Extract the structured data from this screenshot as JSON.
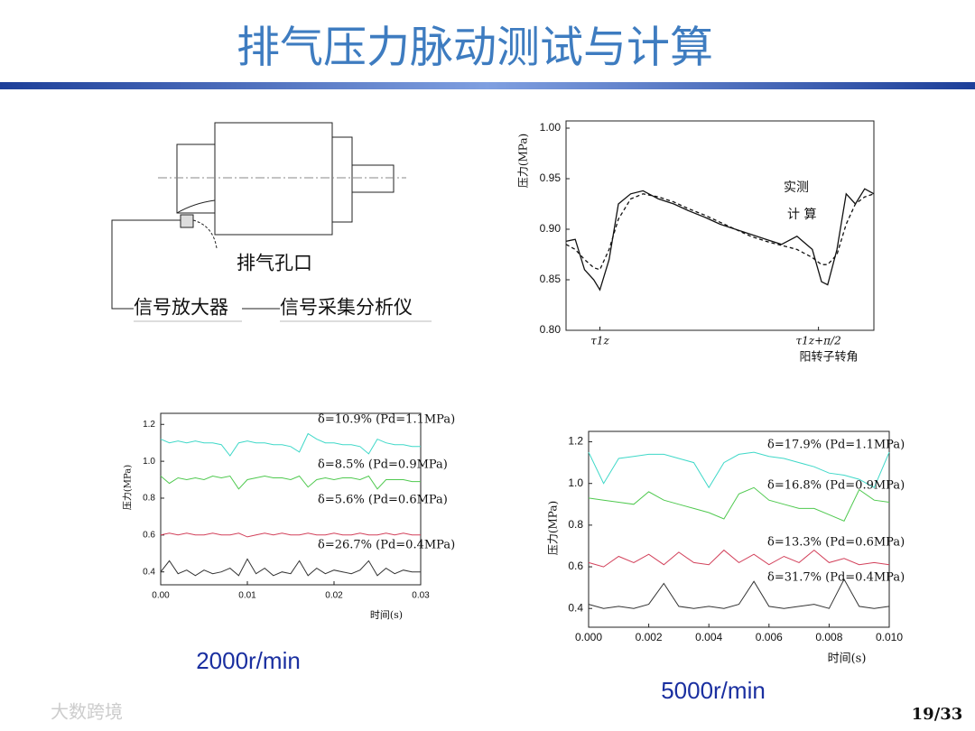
{
  "title": "排气压力脉动测试与计算",
  "diagram": {
    "labels": [
      "排气孔口",
      "信号放大器",
      "信号采集分析仪"
    ]
  },
  "chart_data": [
    {
      "type": "line",
      "ylabel": "压力(MPa)",
      "xlabel": "阳转子转角",
      "xlim": [
        0,
        100
      ],
      "ylim": [
        0.8,
        1.0
      ],
      "xticks": [
        {
          "value": 11,
          "label": "τ1z"
        },
        {
          "value": 82,
          "label": "τ1z+π/2"
        }
      ],
      "yticks": [
        {
          "value": 0.8,
          "label": "0.80"
        },
        0.85,
        {
          "value": 0.9,
          "label": "0.90"
        },
        0.95,
        {
          "value": 1,
          "label": "1.00"
        }
      ],
      "x": [
        0,
        3,
        6,
        9,
        11,
        14,
        17,
        21,
        25,
        30,
        35,
        40,
        45,
        50,
        55,
        60,
        65,
        70,
        75,
        80,
        83,
        85,
        88,
        91,
        94,
        97,
        100
      ],
      "series": [
        {
          "name": "实测",
          "color": "#111111",
          "style": "solid",
          "values": [
            0.888,
            0.89,
            0.86,
            0.85,
            0.84,
            0.87,
            0.925,
            0.935,
            0.938,
            0.93,
            0.925,
            0.918,
            0.912,
            0.905,
            0.9,
            0.895,
            0.89,
            0.885,
            0.893,
            0.88,
            0.848,
            0.845,
            0.88,
            0.935,
            0.925,
            0.94,
            0.935
          ]
        },
        {
          "name": "计 算",
          "color": "#111111",
          "style": "dashed",
          "values": [
            0.885,
            0.88,
            0.87,
            0.862,
            0.86,
            0.88,
            0.91,
            0.93,
            0.935,
            0.932,
            0.927,
            0.92,
            0.914,
            0.907,
            0.9,
            0.893,
            0.888,
            0.884,
            0.88,
            0.872,
            0.865,
            0.865,
            0.875,
            0.905,
            0.925,
            0.932,
            0.935
          ]
        }
      ]
    },
    {
      "type": "line",
      "ylabel": "压力(MPa)",
      "xlabel": "时间(s)",
      "caption": "2000r/min",
      "xlim": [
        0,
        0.03
      ],
      "ylim": [
        0.33,
        1.26
      ],
      "xticks": [
        {
          "value": 0,
          "label": "0.00"
        },
        0.01,
        0.02,
        0.03
      ],
      "yticks": [
        0.4,
        0.6,
        0.8,
        {
          "value": 1,
          "label": "1.0"
        },
        1.2
      ],
      "x": [
        0,
        0.001,
        0.002,
        0.003,
        0.004,
        0.005,
        0.006,
        0.007,
        0.008,
        0.009,
        0.01,
        0.011,
        0.012,
        0.013,
        0.014,
        0.015,
        0.016,
        0.017,
        0.018,
        0.019,
        0.02,
        0.021,
        0.022,
        0.023,
        0.024,
        0.025,
        0.026,
        0.027,
        0.028,
        0.029,
        0.03
      ],
      "series": [
        {
          "name": "δ=10.9%  (Pd=1.1MPa)",
          "color": "#3fd8c8",
          "style": "solid",
          "values": [
            1.12,
            1.1,
            1.11,
            1.1,
            1.11,
            1.1,
            1.1,
            1.09,
            1.03,
            1.1,
            1.11,
            1.1,
            1.1,
            1.09,
            1.09,
            1.08,
            1.05,
            1.15,
            1.12,
            1.1,
            1.1,
            1.09,
            1.09,
            1.08,
            1.04,
            1.12,
            1.1,
            1.09,
            1.09,
            1.08,
            1.08
          ]
        },
        {
          "name": "δ=8.5%   (Pd=0.9MPa)",
          "color": "#4fc94f",
          "style": "solid",
          "values": [
            0.92,
            0.88,
            0.91,
            0.9,
            0.91,
            0.9,
            0.92,
            0.91,
            0.92,
            0.85,
            0.9,
            0.91,
            0.92,
            0.91,
            0.91,
            0.9,
            0.92,
            0.86,
            0.9,
            0.91,
            0.9,
            0.91,
            0.91,
            0.9,
            0.92,
            0.85,
            0.9,
            0.9,
            0.9,
            0.89,
            0.89
          ]
        },
        {
          "name": "δ=5.6%   (Pd=0.6MPa)",
          "color": "#d2405a",
          "style": "solid",
          "values": [
            0.6,
            0.61,
            0.6,
            0.61,
            0.6,
            0.6,
            0.61,
            0.6,
            0.6,
            0.61,
            0.59,
            0.6,
            0.61,
            0.6,
            0.61,
            0.6,
            0.6,
            0.61,
            0.6,
            0.6,
            0.61,
            0.6,
            0.6,
            0.61,
            0.6,
            0.6,
            0.61,
            0.6,
            0.61,
            0.6,
            0.6
          ]
        },
        {
          "name": "δ=26.7% (Pd=0.4MPa)",
          "color": "#333333",
          "style": "solid",
          "values": [
            0.4,
            0.46,
            0.39,
            0.41,
            0.38,
            0.41,
            0.39,
            0.4,
            0.42,
            0.38,
            0.47,
            0.39,
            0.42,
            0.38,
            0.4,
            0.39,
            0.46,
            0.38,
            0.42,
            0.39,
            0.41,
            0.4,
            0.39,
            0.41,
            0.46,
            0.38,
            0.42,
            0.39,
            0.41,
            0.4,
            0.4
          ]
        }
      ]
    },
    {
      "type": "line",
      "ylabel": "压力(MPa)",
      "xlabel": "时间(s)",
      "caption": "5000r/min",
      "xlim": [
        0,
        0.01
      ],
      "ylim": [
        0.31,
        1.25
      ],
      "xticks": [
        {
          "value": 0,
          "label": "0.000"
        },
        0.002,
        0.004,
        0.006,
        0.008,
        {
          "value": 0.01,
          "label": "0.010"
        }
      ],
      "yticks": [
        0.4,
        0.6,
        0.8,
        {
          "value": 1,
          "label": "1.0"
        },
        1.2
      ],
      "x": [
        0,
        0.0005,
        0.001,
        0.0015,
        0.002,
        0.0025,
        0.003,
        0.0035,
        0.004,
        0.0045,
        0.005,
        0.0055,
        0.006,
        0.0065,
        0.007,
        0.0075,
        0.008,
        0.0085,
        0.009,
        0.0095,
        0.01
      ],
      "series": [
        {
          "name": "δ=17.9% (Pd=1.1MPa)",
          "color": "#3fd8c8",
          "style": "solid",
          "values": [
            1.15,
            1.0,
            1.12,
            1.13,
            1.14,
            1.14,
            1.12,
            1.1,
            0.98,
            1.1,
            1.14,
            1.15,
            1.13,
            1.12,
            1.1,
            1.08,
            1.05,
            1.04,
            1.02,
            0.98,
            1.15
          ]
        },
        {
          "name": "δ=16.8% (Pd=0.9MPa)",
          "color": "#4fc94f",
          "style": "solid",
          "values": [
            0.93,
            0.92,
            0.91,
            0.9,
            0.96,
            0.92,
            0.9,
            0.88,
            0.86,
            0.83,
            0.95,
            0.98,
            0.92,
            0.9,
            0.88,
            0.88,
            0.85,
            0.82,
            0.97,
            0.92,
            0.91
          ]
        },
        {
          "name": "δ=13.3% (Pd=0.6MPa)",
          "color": "#d2405a",
          "style": "solid",
          "values": [
            0.62,
            0.6,
            0.65,
            0.62,
            0.66,
            0.61,
            0.67,
            0.62,
            0.61,
            0.68,
            0.62,
            0.66,
            0.61,
            0.65,
            0.62,
            0.68,
            0.62,
            0.64,
            0.61,
            0.62,
            0.61
          ]
        },
        {
          "name": "δ=31.7% (Pd=0.4MPa)",
          "color": "#333333",
          "style": "solid",
          "values": [
            0.42,
            0.4,
            0.41,
            0.4,
            0.42,
            0.52,
            0.41,
            0.4,
            0.41,
            0.4,
            0.42,
            0.53,
            0.41,
            0.4,
            0.41,
            0.42,
            0.4,
            0.54,
            0.41,
            0.4,
            0.41
          ]
        }
      ]
    }
  ],
  "page": "19/33",
  "watermark": "大数跨境"
}
